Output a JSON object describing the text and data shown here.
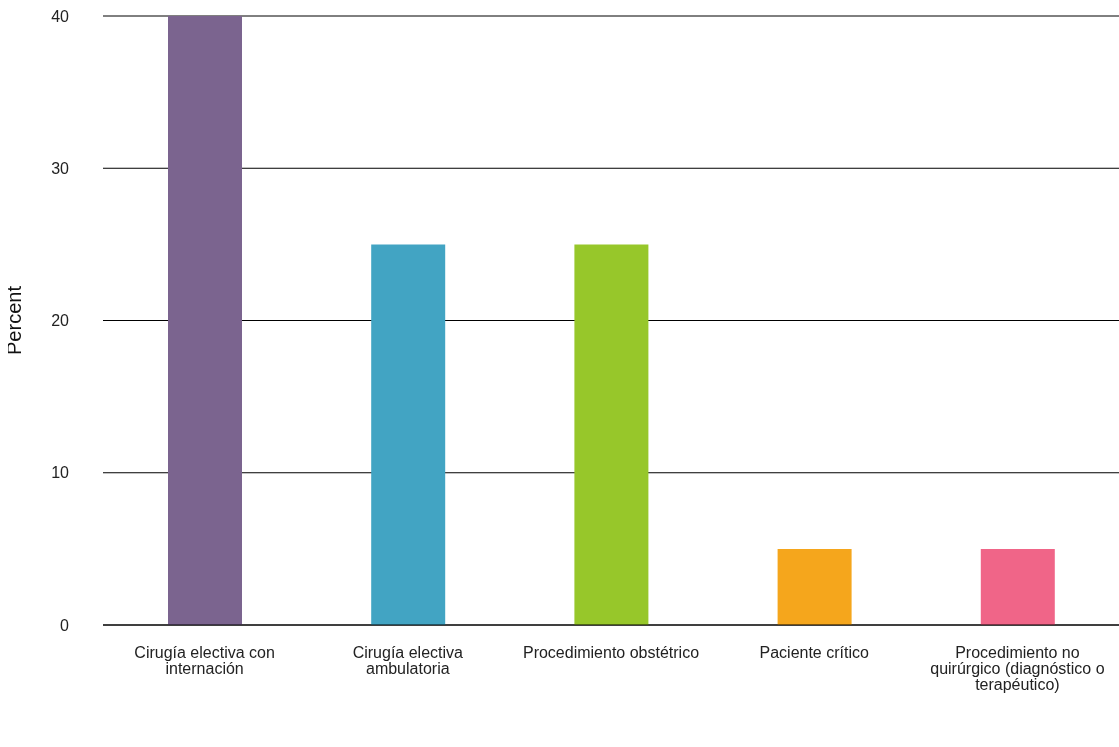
{
  "chart_data": {
    "type": "bar",
    "ylabel": "Percent",
    "categories": [
      "Cirugía electiva con internación",
      "Cirugía electiva ambulatoria",
      "Procedimiento obstétrico",
      "Paciente crítico",
      "Procedimiento no quirúrgico (diagnóstico o terapéutico)"
    ],
    "values": [
      40,
      25,
      25,
      5,
      5
    ],
    "colors": [
      "#7b648f",
      "#42a4c3",
      "#97c72a",
      "#f5a61c",
      "#f06588"
    ],
    "ylim": [
      0,
      40
    ],
    "yticks": [
      0,
      10,
      20,
      30,
      40
    ],
    "grid": "y"
  }
}
